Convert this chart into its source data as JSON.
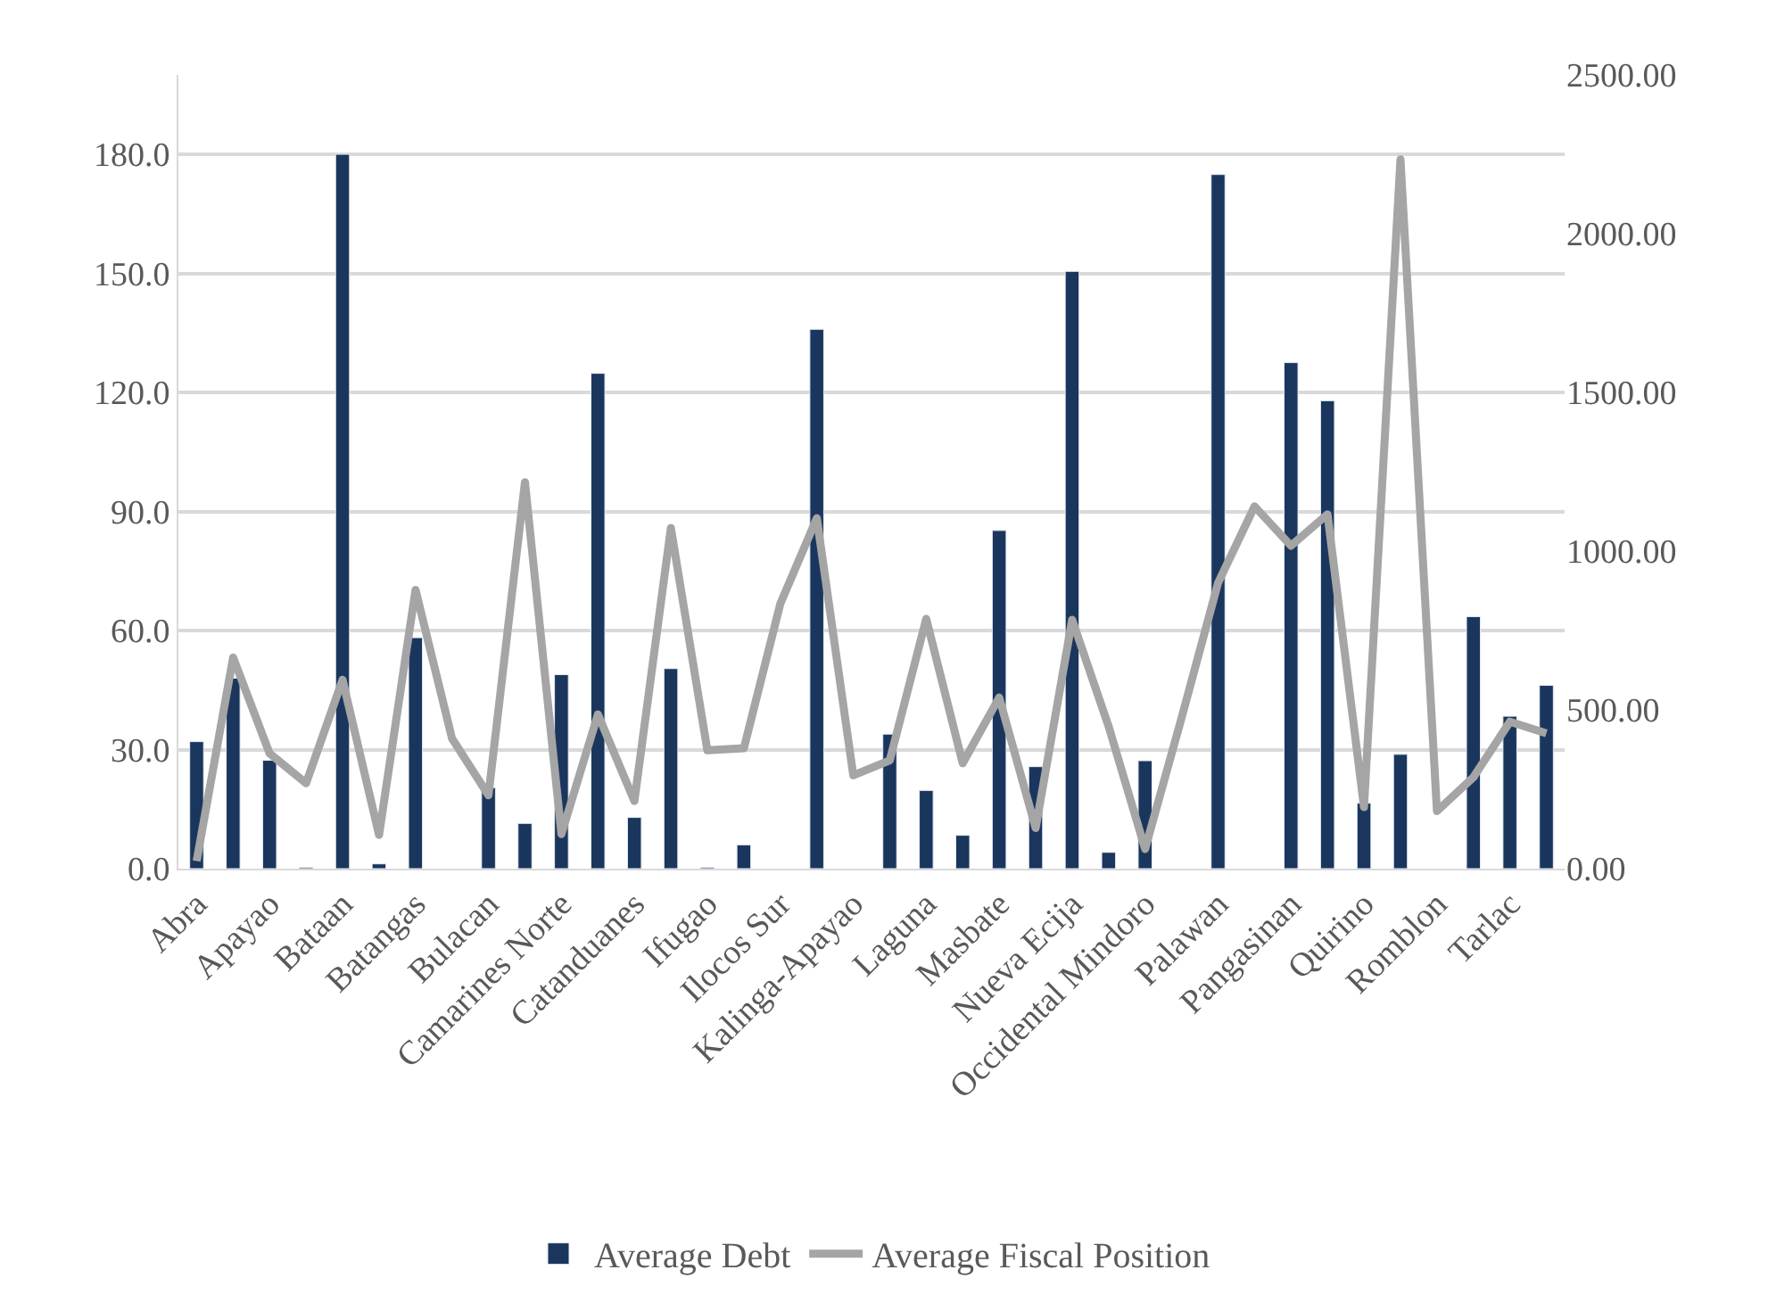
{
  "chart_data": {
    "type": "bar",
    "categories": [
      "Abra",
      null,
      "Apayao",
      null,
      "Bataan",
      null,
      "Batangas",
      null,
      "Bulacan",
      null,
      "Camarines Norte",
      null,
      "Catanduanes",
      null,
      "Ifugao",
      null,
      "Ilocos Sur",
      null,
      "Kalinga-Apayao",
      null,
      "Laguna",
      null,
      "Masbate",
      null,
      "Nueva Ecija",
      null,
      "Occidental Mindoro",
      null,
      "Palawan",
      null,
      "Pangasinan",
      null,
      "Quirino",
      null,
      "Romblon",
      null,
      "Tarlac",
      null
    ],
    "series": [
      {
        "name": "Average Debt",
        "color": "#1b365d",
        "values": [
          32,
          48,
          27.3,
          0.3,
          180,
          1.2,
          58.2,
          null,
          20.4,
          11.4,
          48.9,
          124.8,
          12.9,
          50.4,
          0.3,
          6.0,
          null,
          135.9,
          null,
          33.9,
          19.7,
          8.4,
          85.2,
          25.7,
          150.5,
          4.1,
          27.2,
          null,
          174.9,
          null,
          127.5,
          117.9,
          16.5,
          28.8,
          null,
          63.5,
          38.4,
          46.2
        ]
      },
      {
        "name": "Average Fiscal Position",
        "type": "line",
        "axis": "y2",
        "color": "#a5a5a5",
        "values": [
          24,
          665,
          363,
          269,
          595,
          106,
          878,
          410,
          231,
          1217,
          109,
          486,
          213,
          1073,
          373,
          379,
          834,
          1104,
          294,
          341,
          787,
          332,
          539,
          128,
          784,
          448,
          62,
          475,
          900,
          1141,
          1017,
          1116,
          194,
          2234,
          181,
          288,
          463,
          426
        ]
      }
    ],
    "ylim": [
      0,
      200
    ],
    "yticks": [
      {
        "value": 0,
        "label": "0.0"
      },
      {
        "value": 30,
        "label": "30.0"
      },
      {
        "value": 60,
        "label": "60.0"
      },
      {
        "value": 90,
        "label": "90.0"
      },
      {
        "value": 120,
        "label": "120.0"
      },
      {
        "value": 150,
        "label": "150.0"
      },
      {
        "value": 180,
        "label": "180.0"
      }
    ],
    "y2lim": [
      0,
      2500
    ],
    "y2ticks": [
      {
        "value": 0,
        "label": "0.00"
      },
      {
        "value": 500,
        "label": "500.00"
      },
      {
        "value": 1000,
        "label": "1000.00"
      },
      {
        "value": 1500,
        "label": "1500.00"
      },
      {
        "value": 2000,
        "label": "2000.00"
      },
      {
        "value": 2500,
        "label": "2500.00"
      }
    ],
    "grid": "y",
    "legend": "bottom",
    "marker": "none",
    "line_style": "solid"
  }
}
